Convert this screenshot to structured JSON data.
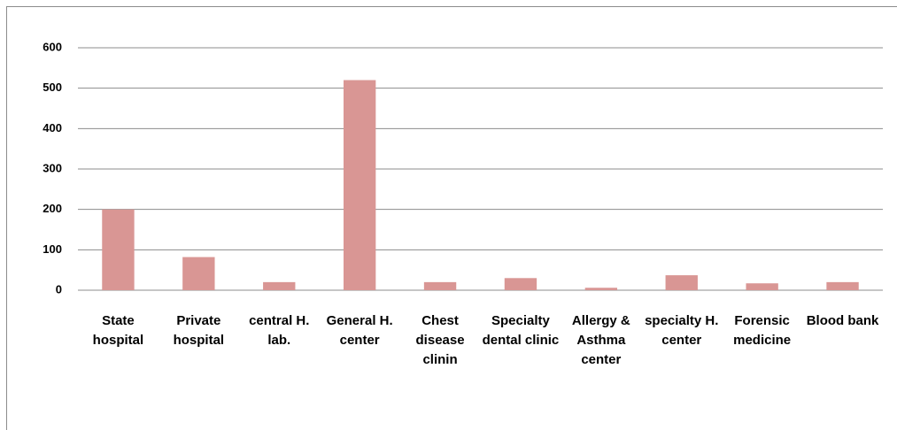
{
  "chart_data": {
    "type": "bar",
    "categories": [
      "State hospital",
      "Private hospital",
      "central H. lab.",
      "General H. center",
      "Chest disease clinin",
      "Specialty dental clinic",
      "Allergy & Asthma center",
      "specialty H. center",
      "Forensic medicine",
      "Blood bank"
    ],
    "values": [
      200,
      82,
      20,
      520,
      20,
      30,
      6,
      37,
      17,
      20
    ],
    "color": "#d99694",
    "ylim": [
      0,
      600
    ],
    "yticks": [
      0,
      100,
      200,
      300,
      400,
      500,
      600
    ],
    "grid": true
  }
}
